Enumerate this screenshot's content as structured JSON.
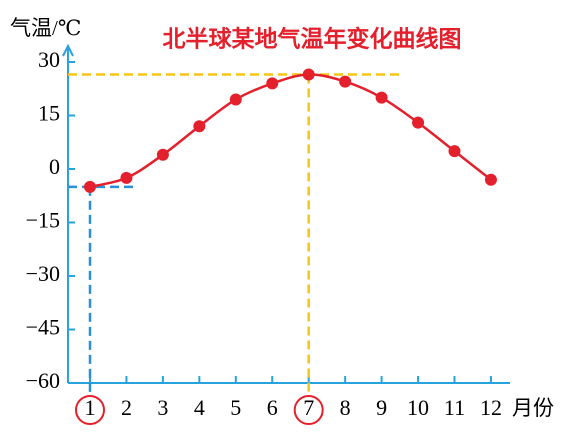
{
  "chart_data": {
    "type": "line",
    "title": "北半球某地气温年变化曲线图",
    "y_label": "气温/℃",
    "x_label": "月份",
    "categories": [
      "1",
      "2",
      "3",
      "4",
      "5",
      "6",
      "7",
      "8",
      "9",
      "10",
      "11",
      "12"
    ],
    "series": [
      {
        "name": "气温",
        "color": "#e3202b",
        "values": [
          -5,
          -2.5,
          4,
          12,
          19.5,
          24,
          26.5,
          24.5,
          20,
          13,
          5,
          -3
        ]
      }
    ],
    "ylim": [
      -60,
      30
    ],
    "yticks": [
      30,
      15,
      0,
      {
        "value": -15,
        "label": "−15"
      },
      {
        "value": -30,
        "label": "−30"
      },
      {
        "value": -45,
        "label": "−45"
      },
      {
        "value": -60,
        "label": "−60"
      }
    ],
    "axis_color": "#29a3dc"
  }
}
